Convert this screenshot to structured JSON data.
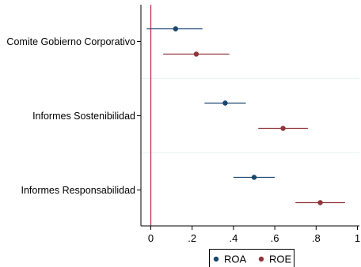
{
  "chart_data": {
    "type": "scatter",
    "subtype": "coefficient-plot",
    "title": "",
    "xlabel": "",
    "ylabel": "",
    "xlim": [
      -0.05,
      1.0
    ],
    "xticks": [
      0,
      0.2,
      0.4,
      0.6,
      0.8,
      1
    ],
    "xtick_labels": [
      "0",
      ".2",
      ".4",
      ".6",
      ".8",
      "1"
    ],
    "reference_line": {
      "x": 0,
      "color": "#c0304e"
    },
    "categories": [
      "Comite Gobierno Corporativo",
      "Informes Sostenibilidad",
      "Informes Responsabilidad"
    ],
    "series": [
      {
        "name": "ROA",
        "color": "#1a476f",
        "estimates": [
          0.12,
          0.36,
          0.5
        ],
        "ci_low": [
          -0.02,
          0.26,
          0.4
        ],
        "ci_high": [
          0.25,
          0.46,
          0.6
        ]
      },
      {
        "name": "ROE",
        "color": "#90353b",
        "estimates": [
          0.22,
          0.64,
          0.82
        ],
        "ci_low": [
          0.06,
          0.52,
          0.7
        ],
        "ci_high": [
          0.38,
          0.76,
          0.94
        ]
      }
    ],
    "grid": true,
    "legend_position": "bottom"
  }
}
